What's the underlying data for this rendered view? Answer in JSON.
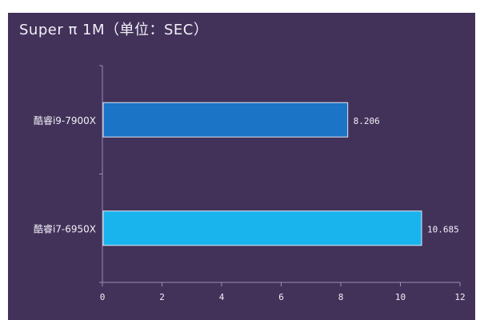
{
  "chart_data": {
    "type": "bar",
    "orientation": "horizontal",
    "title": "Super π 1M（单位：SEC）",
    "categories": [
      "酷睿i9-7900X",
      "酷睿i7-6950X"
    ],
    "values": [
      8.206,
      10.685
    ],
    "value_labels": [
      "8.206",
      "10.685"
    ],
    "bar_colors": [
      "#1b74c6",
      "#19b4ee"
    ],
    "xlim": [
      0,
      12
    ],
    "xticks": [
      "0",
      "2",
      "4",
      "6",
      "8",
      "10",
      "12"
    ],
    "xlabel": "",
    "ylabel": "",
    "grid": false,
    "legend": "none"
  },
  "colors": {
    "background": "#42325a",
    "text": "#f2f0f7",
    "axis": "#9a8fb0"
  }
}
